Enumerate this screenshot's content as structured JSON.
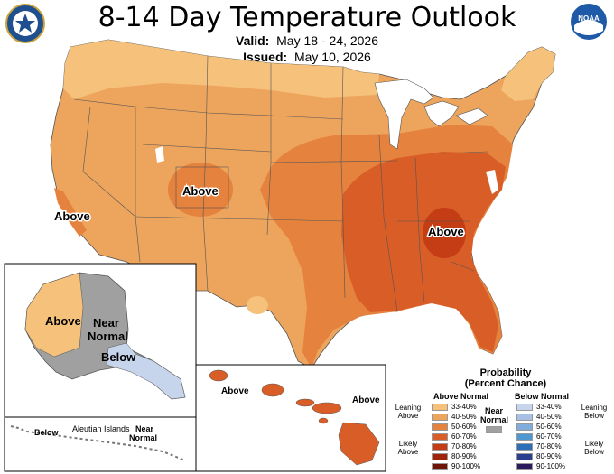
{
  "title": "8-14 Day Temperature Outlook",
  "valid_label": "Valid:",
  "valid_value": "May 18 - 24, 2026",
  "issued_label": "Issued:",
  "issued_value": "May 10, 2026",
  "logos": {
    "left": "doc-seal-icon",
    "right": "noaa-logo-icon",
    "right_text": "NOAA"
  },
  "map_labels": {
    "above_colorado": "Above",
    "above_california": "Above",
    "above_southeast": "Above",
    "alaska_above": "Above",
    "alaska_near_1": "Near",
    "alaska_near_2": "Normal",
    "alaska_below": "Below",
    "aleutian_below": "Below",
    "aleutian_islands": "Aleutian Islands",
    "aleutian_near_1": "Near",
    "aleutian_near_2": "Normal",
    "hawaii_above_1": "Above",
    "hawaii_above_2": "Above"
  },
  "legend": {
    "title_1": "Probability",
    "title_2": "(Percent Chance)",
    "above_header": "Above Normal",
    "below_header": "Below Normal",
    "near_label_1": "Near",
    "near_label_2": "Normal",
    "leaning_above_1": "Leaning",
    "leaning_above_2": "Above",
    "likely_above_1": "Likely",
    "likely_above_2": "Above",
    "leaning_below_1": "Leaning",
    "leaning_below_2": "Below",
    "likely_below_1": "Likely",
    "likely_below_2": "Below",
    "above_bins": [
      {
        "label": "33-40%",
        "color": "#f5c17b"
      },
      {
        "label": "40-50%",
        "color": "#eda45c"
      },
      {
        "label": "50-60%",
        "color": "#e5823e"
      },
      {
        "label": "60-70%",
        "color": "#d85d26"
      },
      {
        "label": "70-80%",
        "color": "#c53d14"
      },
      {
        "label": "80-90%",
        "color": "#9e250b"
      },
      {
        "label": "90-100%",
        "color": "#6e1405"
      }
    ],
    "below_bins": [
      {
        "label": "33-40%",
        "color": "#c6d4ec"
      },
      {
        "label": "40-50%",
        "color": "#a8c0e3"
      },
      {
        "label": "50-60%",
        "color": "#80addb"
      },
      {
        "label": "60-70%",
        "color": "#4f97d1"
      },
      {
        "label": "70-80%",
        "color": "#2a6fb7"
      },
      {
        "label": "80-90%",
        "color": "#2b3f8f"
      },
      {
        "label": "90-100%",
        "color": "#2b1a5e"
      }
    ],
    "near_color": "#a0a0a0"
  }
}
